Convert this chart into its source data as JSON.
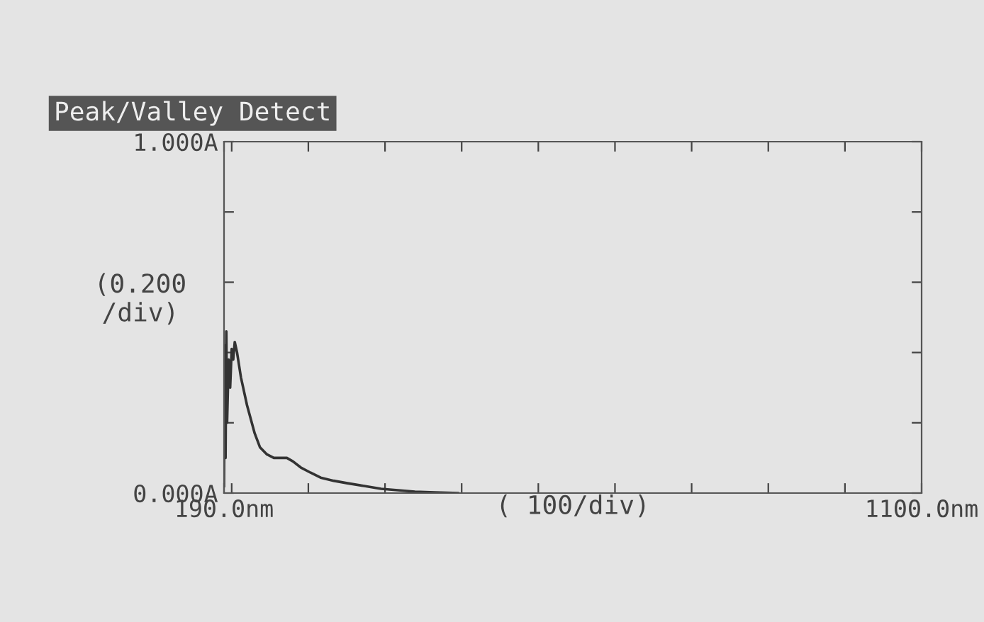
{
  "chart_data": {
    "type": "line",
    "title": "Peak/Valley Detect",
    "xlabel": "( 100/div)",
    "ylabel": "(0.200\n/div)",
    "x": [
      190,
      191,
      192,
      193,
      194,
      196,
      198,
      200,
      202,
      204,
      207,
      212,
      220,
      230,
      237,
      246,
      255,
      263,
      272,
      280,
      290,
      303,
      316,
      333,
      351,
      373,
      395,
      417,
      439,
      465,
      495
    ],
    "series": [
      {
        "color": "#333333",
        "values": [
          0.02,
          0.42,
          0.1,
          0.46,
          0.2,
          0.38,
          0.3,
          0.41,
          0.38,
          0.43,
          0.4,
          0.33,
          0.25,
          0.17,
          0.13,
          0.11,
          0.1,
          0.1,
          0.1,
          0.09,
          0.073,
          0.058,
          0.044,
          0.035,
          0.028,
          0.02,
          0.012,
          0.008,
          0.004,
          0.002,
          0.0
        ]
      }
    ],
    "xlim": [
      190,
      1100
    ],
    "ylim": [
      0,
      1
    ],
    "xticks": [
      {
        "value": 190,
        "label": "190.0nm"
      },
      {
        "value": 200,
        "label": null
      },
      {
        "value": 300,
        "label": null
      },
      {
        "value": 400,
        "label": null
      },
      {
        "value": 500,
        "label": null
      },
      {
        "value": 600,
        "label": null
      },
      {
        "value": 700,
        "label": null
      },
      {
        "value": 800,
        "label": null
      },
      {
        "value": 900,
        "label": null
      },
      {
        "value": 1000,
        "label": null
      },
      {
        "value": 1100,
        "label": "1100.0nm"
      }
    ],
    "yticks": [
      {
        "value": 0,
        "label": "0.000A"
      },
      {
        "value": 0.2,
        "label": null
      },
      {
        "value": 0.4,
        "label": null
      },
      {
        "value": 0.6,
        "label": null
      },
      {
        "value": 0.8,
        "label": null
      },
      {
        "value": 1,
        "label": "1.000A"
      }
    ],
    "grid": false,
    "legend": false,
    "marker": "none",
    "line_style": "solid"
  }
}
